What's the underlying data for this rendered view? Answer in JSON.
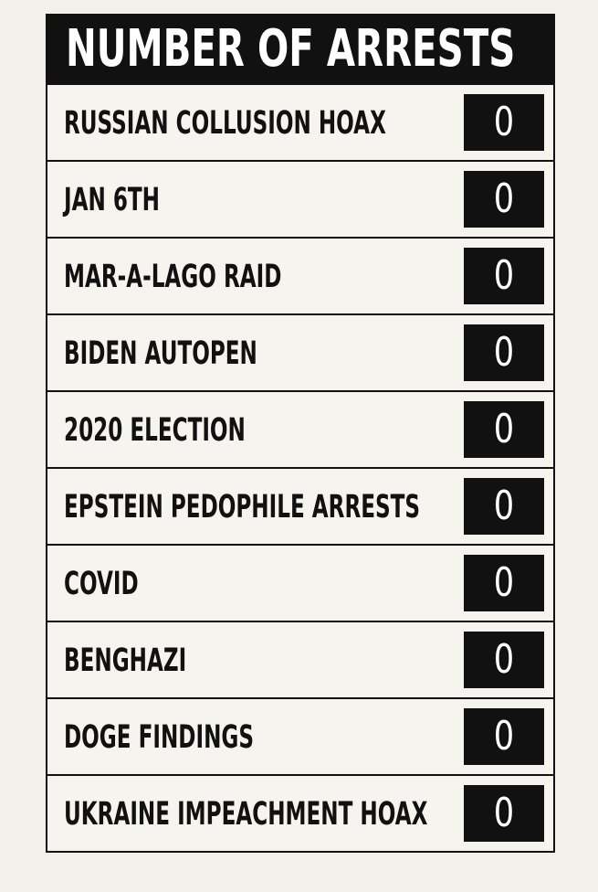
{
  "table": {
    "title": "NUMBER OF ARRESTS",
    "rows": [
      [
        "RUSSIAN COLLUSION HOAX",
        0
      ],
      [
        "JAN 6TH",
        0
      ],
      [
        "MAR-A-LAGO RAID",
        0
      ],
      [
        "BIDEN AUTOPEN",
        0
      ],
      [
        "2020 ELECTION",
        0
      ],
      [
        "EPSTEIN PEDOPHILE ARRESTS",
        0
      ],
      [
        "COVID",
        0
      ],
      [
        "BENGHAZI",
        0
      ],
      [
        "DOGE FINDINGS",
        0
      ],
      [
        "UKRAINE IMPEACHMENT HOAX",
        0
      ]
    ]
  }
}
